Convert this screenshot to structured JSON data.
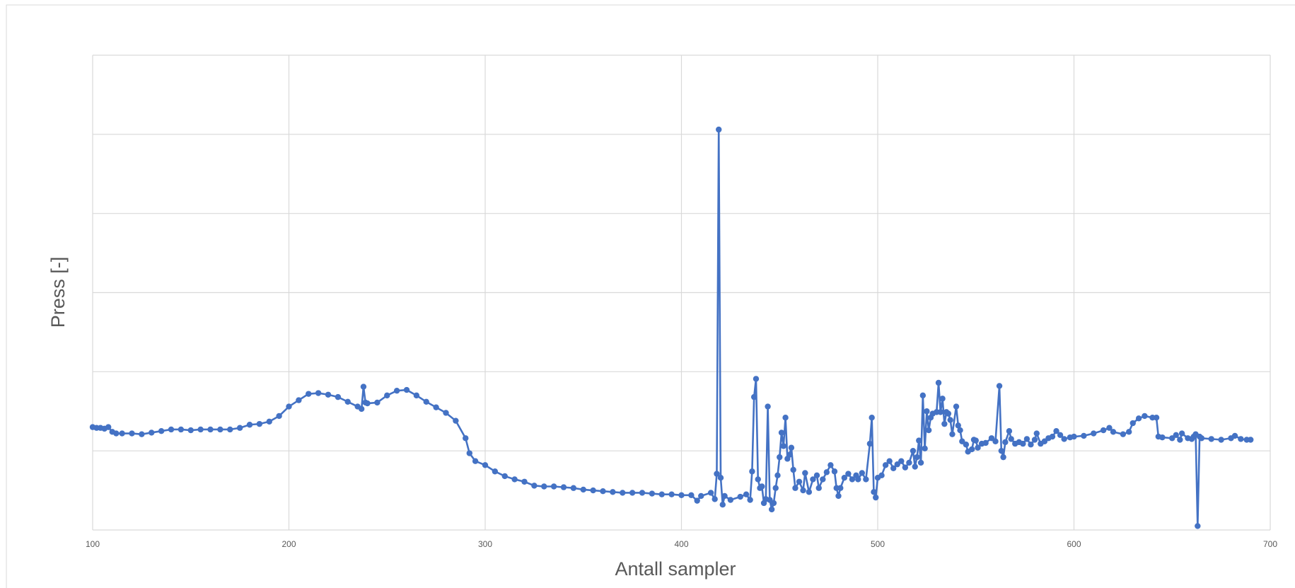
{
  "chart_data": {
    "type": "line",
    "xlabel": "Antall sampler",
    "ylabel": "Press [-]",
    "color": "#4472c4",
    "grid": true,
    "xlim": [
      100,
      700
    ],
    "xticks": [
      100,
      200,
      300,
      400,
      500,
      600,
      700
    ],
    "ylim": [
      0,
      6
    ],
    "yticks": [
      0,
      1,
      2,
      3,
      4,
      5,
      6
    ],
    "x": [
      100,
      102,
      104,
      106,
      108,
      110,
      112,
      115,
      120,
      125,
      130,
      135,
      140,
      145,
      150,
      155,
      160,
      165,
      170,
      175,
      180,
      185,
      190,
      195,
      200,
      205,
      210,
      215,
      220,
      225,
      230,
      235,
      237,
      238,
      239,
      240,
      245,
      250,
      255,
      260,
      265,
      270,
      275,
      280,
      285,
      290,
      292,
      295,
      300,
      305,
      310,
      315,
      320,
      325,
      330,
      335,
      340,
      345,
      350,
      355,
      360,
      365,
      370,
      375,
      380,
      385,
      390,
      395,
      400,
      405,
      408,
      410,
      415,
      417,
      418,
      419,
      420,
      421,
      422,
      425,
      430,
      433,
      435,
      436,
      437,
      438,
      439,
      440,
      441,
      442,
      443,
      444,
      445,
      446,
      447,
      448,
      449,
      450,
      451,
      452,
      453,
      454,
      455,
      456,
      457,
      458,
      460,
      462,
      463,
      465,
      467,
      469,
      470,
      472,
      474,
      476,
      478,
      479,
      480,
      481,
      483,
      485,
      487,
      489,
      490,
      492,
      494,
      496,
      497,
      498,
      499,
      500,
      502,
      504,
      506,
      508,
      510,
      512,
      514,
      516,
      518,
      519,
      520,
      521,
      522,
      523,
      524,
      525,
      526,
      527,
      528,
      530,
      531,
      532,
      533,
      534,
      535,
      536,
      537,
      538,
      540,
      541,
      542,
      543,
      545,
      546,
      548,
      549,
      550,
      551,
      553,
      555,
      558,
      560,
      562,
      563,
      564,
      565,
      567,
      568,
      570,
      572,
      574,
      576,
      578,
      580,
      581,
      583,
      585,
      587,
      589,
      591,
      593,
      595,
      598,
      600,
      605,
      610,
      615,
      618,
      620,
      625,
      628,
      630,
      633,
      636,
      640,
      642,
      643,
      645,
      650,
      652,
      654,
      655,
      658,
      660,
      661,
      662,
      663,
      664,
      665,
      670,
      675,
      680,
      682,
      685,
      688,
      690
    ],
    "values": [
      1.3,
      1.29,
      1.29,
      1.28,
      1.3,
      1.24,
      1.22,
      1.22,
      1.22,
      1.21,
      1.23,
      1.25,
      1.27,
      1.27,
      1.26,
      1.27,
      1.27,
      1.27,
      1.27,
      1.29,
      1.33,
      1.34,
      1.37,
      1.44,
      1.56,
      1.64,
      1.72,
      1.73,
      1.71,
      1.68,
      1.62,
      1.56,
      1.53,
      1.81,
      1.61,
      1.6,
      1.61,
      1.7,
      1.76,
      1.77,
      1.7,
      1.62,
      1.55,
      1.48,
      1.38,
      1.16,
      0.97,
      0.87,
      0.82,
      0.74,
      0.68,
      0.64,
      0.61,
      0.56,
      0.55,
      0.55,
      0.54,
      0.53,
      0.51,
      0.5,
      0.49,
      0.48,
      0.47,
      0.47,
      0.47,
      0.46,
      0.45,
      0.45,
      0.44,
      0.44,
      0.37,
      0.43,
      0.47,
      0.39,
      0.71,
      5.06,
      0.66,
      0.32,
      0.43,
      0.38,
      0.42,
      0.45,
      0.38,
      0.74,
      1.68,
      1.91,
      0.64,
      0.53,
      0.55,
      0.34,
      0.39,
      1.56,
      0.38,
      0.26,
      0.34,
      0.53,
      0.69,
      0.92,
      1.23,
      1.06,
      1.42,
      0.9,
      0.95,
      1.04,
      0.76,
      0.53,
      0.61,
      0.5,
      0.72,
      0.48,
      0.64,
      0.69,
      0.53,
      0.64,
      0.73,
      0.82,
      0.74,
      0.53,
      0.43,
      0.53,
      0.66,
      0.71,
      0.64,
      0.69,
      0.64,
      0.72,
      0.64,
      1.09,
      1.42,
      0.48,
      0.41,
      0.66,
      0.69,
      0.82,
      0.87,
      0.78,
      0.83,
      0.87,
      0.79,
      0.85,
      1.0,
      0.8,
      0.92,
      1.13,
      0.85,
      1.7,
      1.03,
      1.5,
      1.26,
      1.42,
      1.47,
      1.49,
      1.86,
      1.49,
      1.66,
      1.34,
      1.49,
      1.47,
      1.39,
      1.21,
      1.56,
      1.32,
      1.26,
      1.12,
      1.08,
      0.99,
      1.02,
      1.14,
      1.13,
      1.04,
      1.09,
      1.1,
      1.16,
      1.12,
      1.82,
      1.0,
      0.92,
      1.11,
      1.25,
      1.15,
      1.09,
      1.11,
      1.09,
      1.15,
      1.08,
      1.14,
      1.22,
      1.09,
      1.12,
      1.16,
      1.18,
      1.25,
      1.2,
      1.15,
      1.17,
      1.18,
      1.19,
      1.22,
      1.26,
      1.29,
      1.24,
      1.21,
      1.24,
      1.35,
      1.41,
      1.44,
      1.42,
      1.42,
      1.18,
      1.17,
      1.16,
      1.2,
      1.14,
      1.22,
      1.16,
      1.15,
      1.18,
      1.21,
      0.05,
      1.18,
      1.16,
      1.15,
      1.14,
      1.16,
      1.19,
      1.15,
      1.14,
      1.14
    ]
  }
}
